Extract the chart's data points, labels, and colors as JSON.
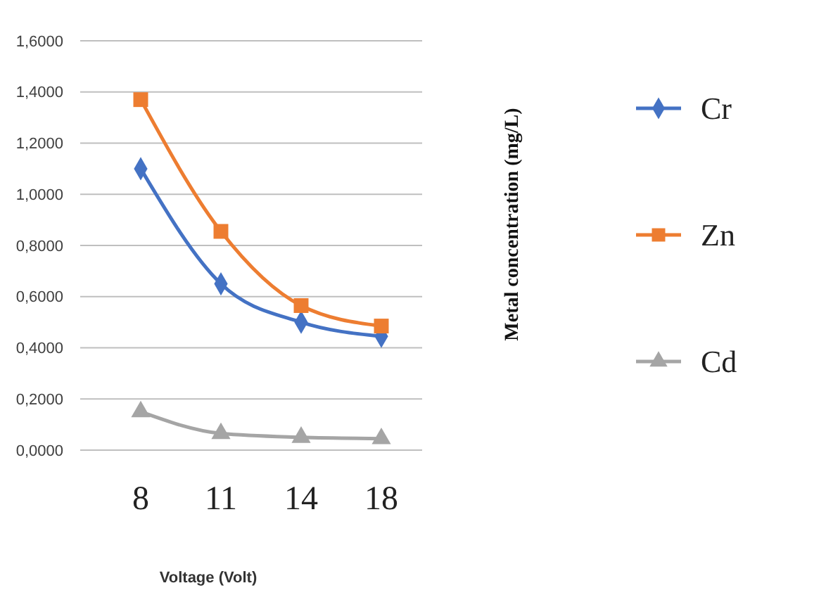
{
  "chart_data": {
    "type": "line",
    "xlabel": "Voltage (Volt)",
    "ylabel": "Metal concentration  (mg/L)",
    "categories": [
      "8",
      "11",
      "14",
      "18"
    ],
    "series": [
      {
        "name": "Cr",
        "color": "#4472c4",
        "marker": "diamond",
        "values": [
          1.1,
          0.65,
          0.5,
          0.445
        ]
      },
      {
        "name": "Zn",
        "color": "#ed7d31",
        "marker": "square",
        "values": [
          1.37,
          0.855,
          0.565,
          0.485
        ]
      },
      {
        "name": "Cd",
        "color": "#a5a5a5",
        "marker": "triangle",
        "values": [
          0.15,
          0.065,
          0.05,
          0.045
        ]
      }
    ],
    "ylim": [
      0,
      1.6
    ],
    "yticks": [
      {
        "value": 0,
        "label": "0,0000"
      },
      {
        "value": 0.2,
        "label": "0,2000"
      },
      {
        "value": 0.4,
        "label": "0,4000"
      },
      {
        "value": 0.6,
        "label": "0,6000"
      },
      {
        "value": 0.8,
        "label": "0,8000"
      },
      {
        "value": 1,
        "label": "1,0000"
      },
      {
        "value": 1.2,
        "label": "1,2000"
      },
      {
        "value": 1.4,
        "label": "1,4000"
      },
      {
        "value": 1.6,
        "label": "1,6000"
      }
    ],
    "grid": "y",
    "legend": "right"
  }
}
